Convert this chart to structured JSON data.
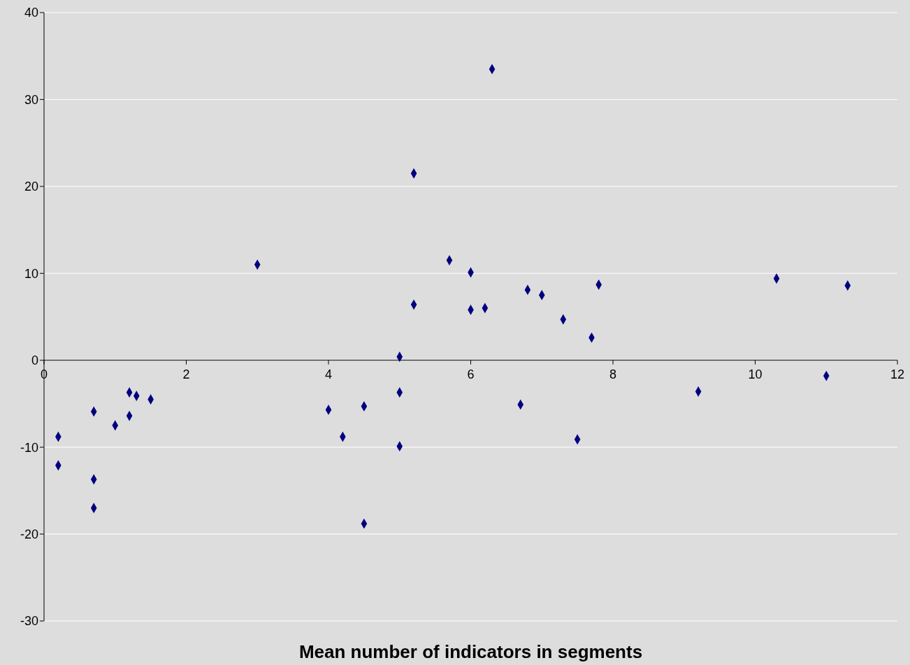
{
  "chart_data": {
    "type": "scatter",
    "xlabel": "Mean number of indicators in segments",
    "x": [
      0.2,
      0.2,
      0.7,
      0.7,
      0.7,
      1.0,
      1.2,
      1.2,
      1.3,
      1.5,
      3.0,
      4.0,
      4.2,
      4.5,
      4.5,
      5.0,
      5.0,
      5.0,
      5.2,
      5.2,
      5.7,
      6.0,
      6.0,
      6.2,
      6.3,
      6.7,
      6.8,
      7.0,
      7.3,
      7.5,
      7.7,
      7.8,
      9.2,
      10.3,
      11.0,
      11.3
    ],
    "values": [
      -8.8,
      -12.1,
      -5.9,
      -13.7,
      -17.0,
      -7.5,
      -3.7,
      -6.4,
      -4.1,
      -4.5,
      11.0,
      -5.7,
      -8.8,
      -5.3,
      -18.8,
      0.4,
      -3.7,
      -9.9,
      21.5,
      6.4,
      11.5,
      10.1,
      5.8,
      6.0,
      33.5,
      -5.1,
      8.1,
      7.5,
      4.7,
      -9.1,
      2.6,
      8.7,
      -3.6,
      9.4,
      -1.8,
      8.6
    ],
    "color": "#000080",
    "marker": "diamond",
    "xlim": [
      0,
      12
    ],
    "xticks": [
      0,
      2,
      4,
      6,
      8,
      10,
      12
    ],
    "ylim": [
      -30,
      40
    ],
    "yticks": [
      -30,
      -20,
      -10,
      0,
      10,
      20,
      30,
      40
    ],
    "grid": "y"
  }
}
